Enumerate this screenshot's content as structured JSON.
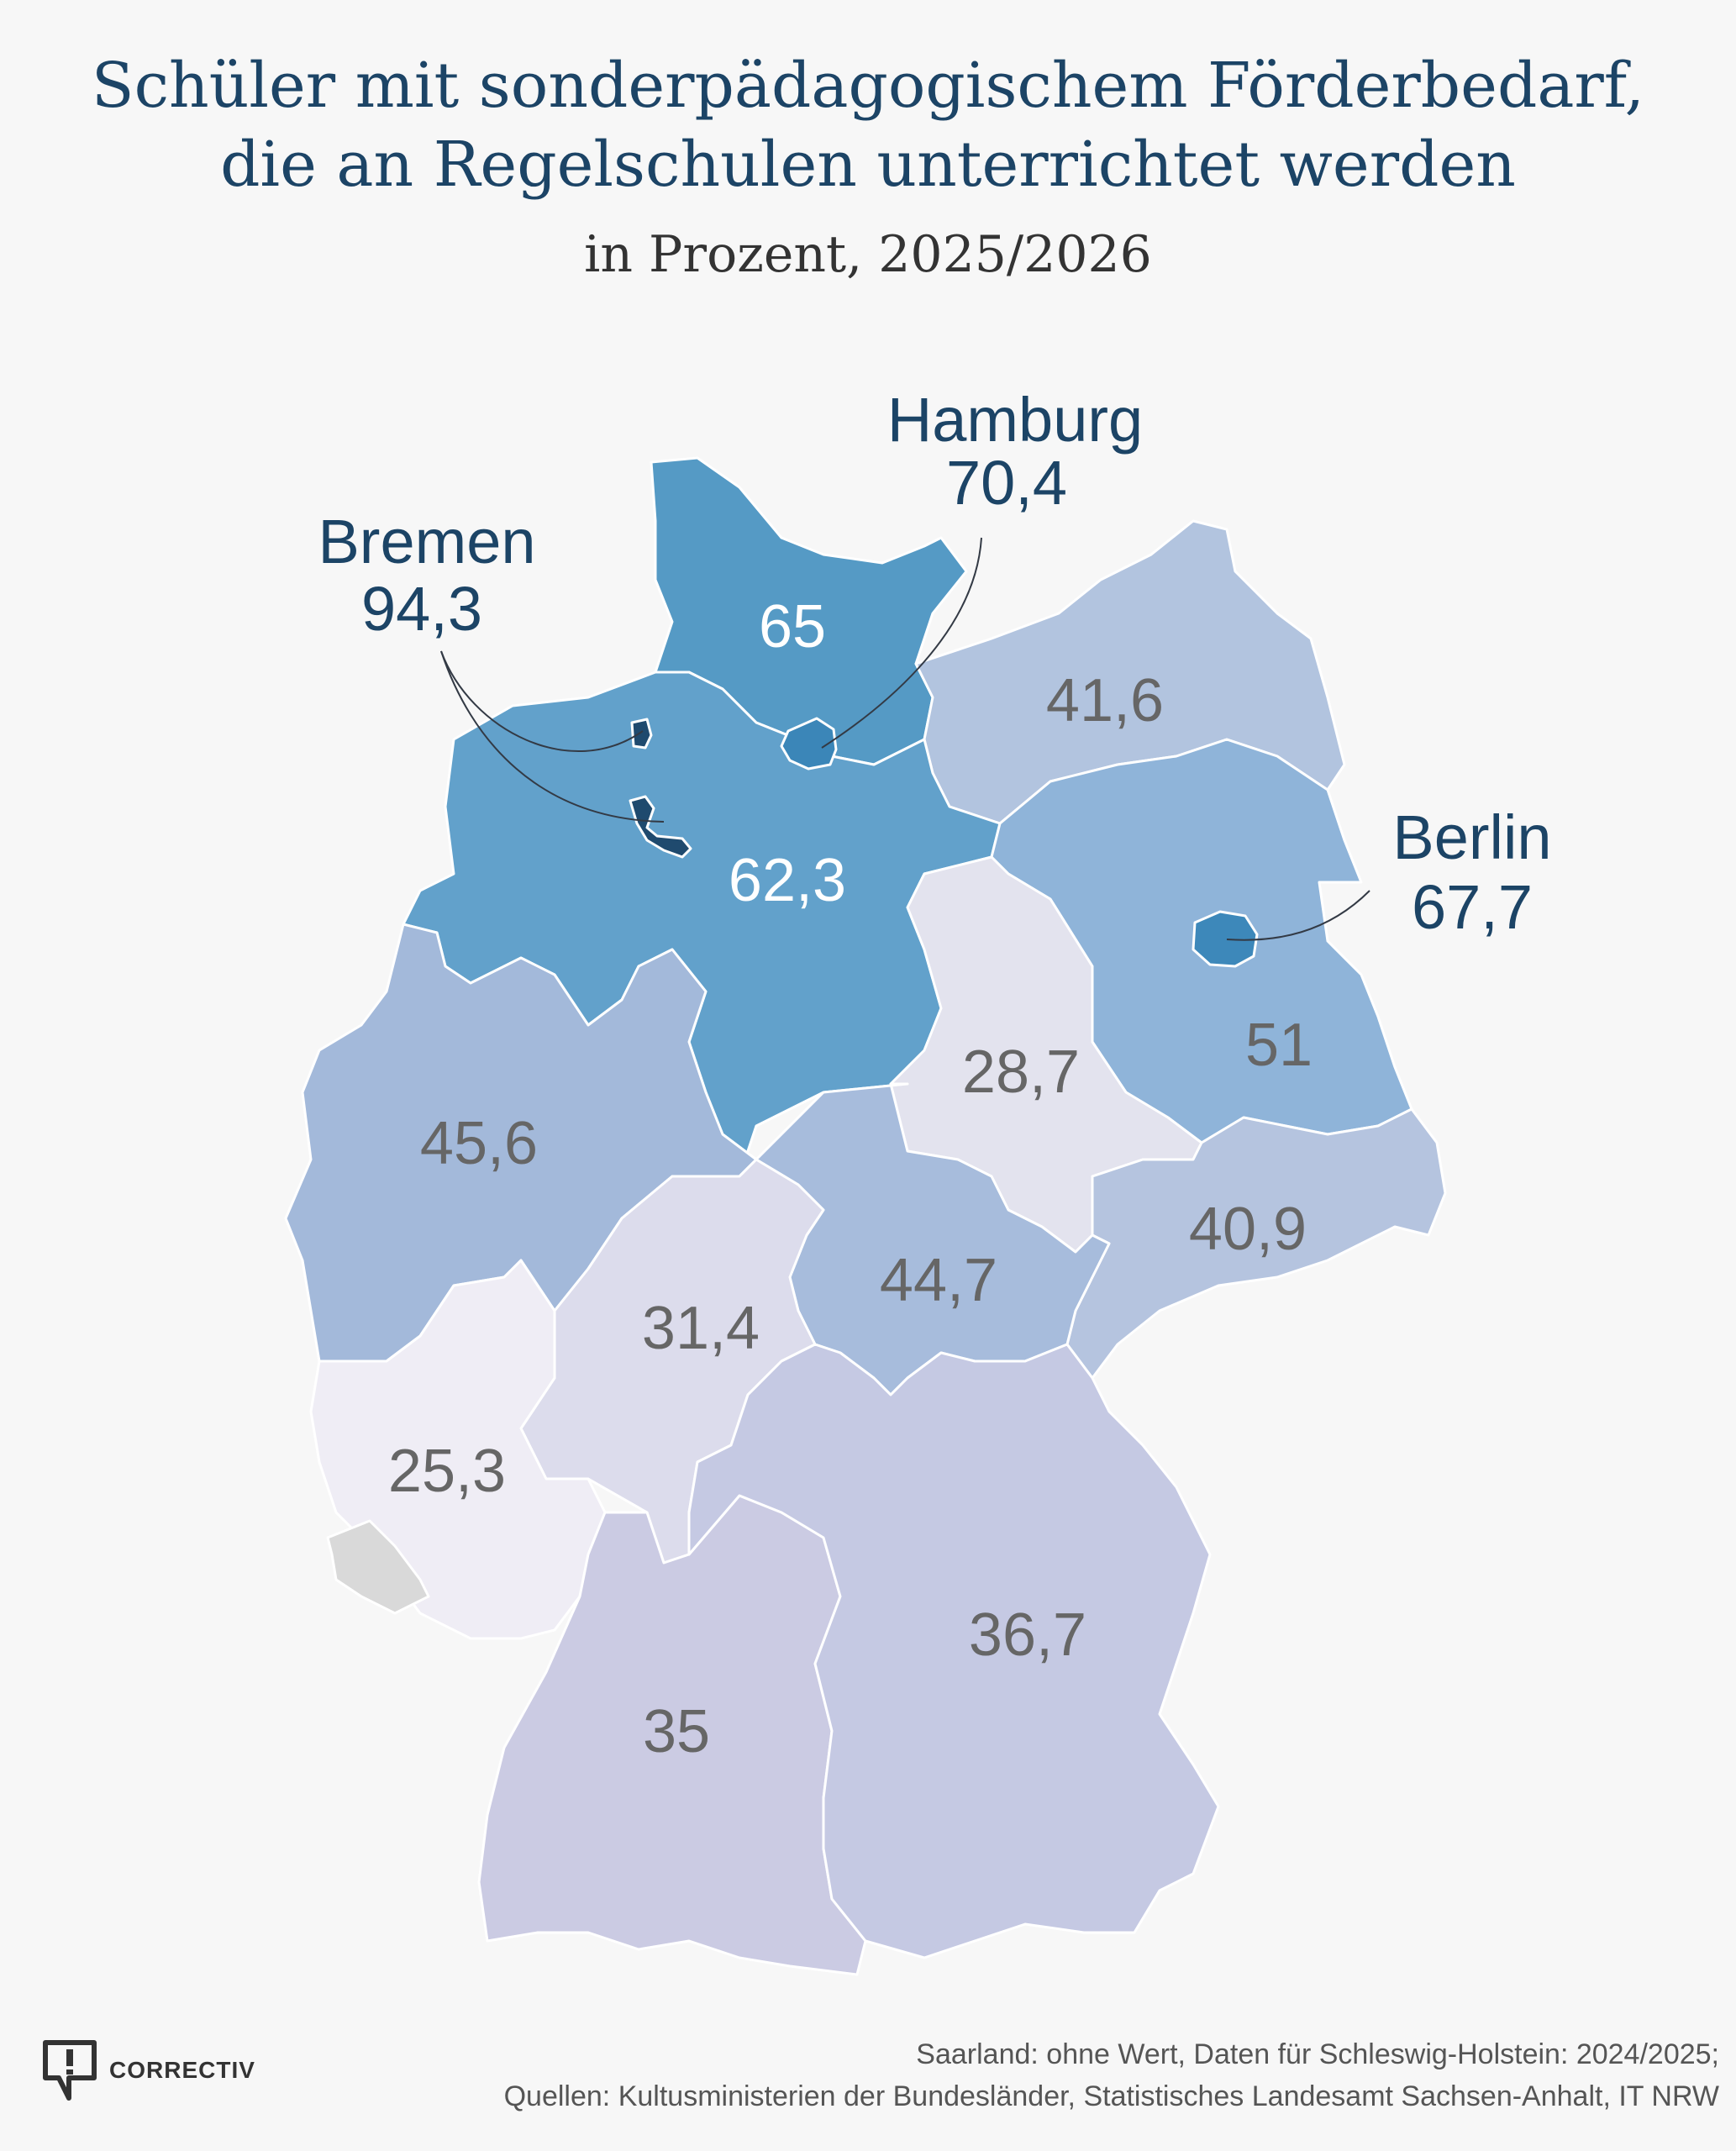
{
  "header": {
    "title_line1": "Schüler mit sonderpädagogischem Förderbedarf,",
    "title_line2": "die an Regelschulen unterrichtet werden",
    "subtitle": "in Prozent, 2025/2026"
  },
  "states": {
    "schleswig_holstein": {
      "value": "65",
      "color": "#559ac5"
    },
    "mecklenburg_vorpommern": {
      "value": "41,6",
      "color": "#b2c4df"
    },
    "niedersachsen": {
      "value": "62,3",
      "color": "#62a1cb"
    },
    "brandenburg": {
      "value": "51",
      "color": "#8fb4d9"
    },
    "sachsen_anhalt": {
      "value": "28,7",
      "color": "#e3e3ee"
    },
    "nordrhein_westfalen": {
      "value": "45,6",
      "color": "#a3b9da"
    },
    "sachsen": {
      "value": "40,9",
      "color": "#b5c4df"
    },
    "thueringen": {
      "value": "44,7",
      "color": "#a7bcdc"
    },
    "hessen": {
      "value": "31,4",
      "color": "#dcdcec"
    },
    "rheinland_pfalz": {
      "value": "25,3",
      "color": "#efedf5"
    },
    "saarland": {
      "value": "",
      "color": "#d9d9d9"
    },
    "baden_wuerttemberg": {
      "value": "35",
      "color": "#cbcbe3"
    },
    "bayern": {
      "value": "36,7",
      "color": "#c5c9e3"
    },
    "bremen": {
      "value": "94,3",
      "color": "#1f4a6e"
    },
    "hamburg": {
      "value": "70,4",
      "color": "#3b86b8"
    },
    "berlin": {
      "value": "67,7",
      "color": "#3d88ba"
    }
  },
  "callouts": {
    "hamburg": {
      "name": "Hamburg",
      "value": "70,4"
    },
    "bremen": {
      "name": "Bremen",
      "value": "94,3"
    },
    "berlin": {
      "name": "Berlin",
      "value": "67,7"
    }
  },
  "colors": {
    "light_label": "#ffffff",
    "dark_label": "#666666",
    "callout": "#1c4466",
    "background": "#f7f7f7"
  },
  "footer": {
    "note": "Saarland: ohne Wert, Daten für Schleswig-Holstein: 2024/2025;",
    "sources": "Quellen: Kultusministerien  der Bundesländer, Statistisches Landesamt Sachsen-Anhalt, IT NRW"
  },
  "brand": {
    "name": "CORRECTIV",
    "icon": "speech-bubble-exclamation-icon"
  }
}
